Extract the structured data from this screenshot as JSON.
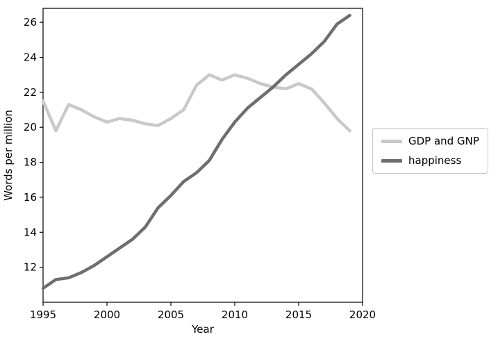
{
  "chart_data": {
    "type": "line",
    "title": "",
    "xlabel": "Year",
    "ylabel": "Words per million",
    "xlim": [
      1995,
      2020
    ],
    "ylim": [
      10.0,
      26.8
    ],
    "x_ticks": [
      1995,
      2000,
      2005,
      2010,
      2015,
      2020
    ],
    "y_ticks": [
      12,
      14,
      16,
      18,
      20,
      22,
      24,
      26
    ],
    "grid": false,
    "legend_position": "outside-right",
    "x": [
      1995,
      1996,
      1997,
      1998,
      1999,
      2000,
      2001,
      2002,
      2003,
      2004,
      2005,
      2006,
      2007,
      2008,
      2009,
      2010,
      2011,
      2012,
      2013,
      2014,
      2015,
      2016,
      2017,
      2018,
      2019
    ],
    "series": [
      {
        "name": "GDP and GNP",
        "color": "#c9c9c9",
        "values": [
          21.5,
          19.8,
          21.3,
          21.0,
          20.6,
          20.3,
          20.5,
          20.4,
          20.2,
          20.1,
          20.5,
          21.0,
          22.4,
          23.0,
          22.7,
          23.0,
          22.8,
          22.5,
          22.3,
          22.2,
          22.5,
          22.2,
          21.4,
          20.5,
          19.8
        ]
      },
      {
        "name": "happiness",
        "color": "#6e6e6e",
        "values": [
          10.8,
          11.3,
          11.4,
          11.7,
          12.1,
          12.6,
          13.1,
          13.6,
          14.3,
          15.4,
          16.1,
          16.9,
          17.4,
          18.1,
          19.3,
          20.3,
          21.1,
          21.7,
          22.3,
          23.0,
          23.6,
          24.2,
          24.9,
          25.9,
          26.4
        ]
      }
    ]
  }
}
